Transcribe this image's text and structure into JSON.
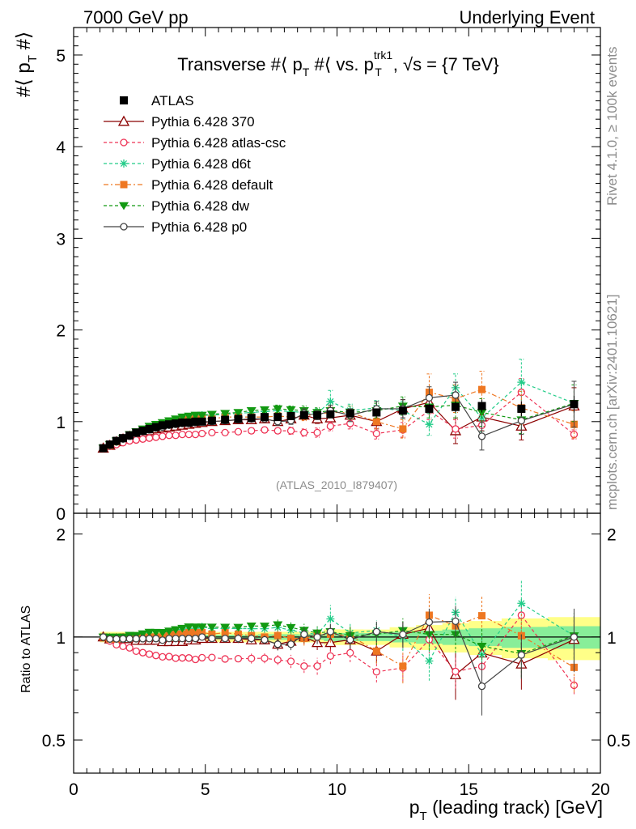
{
  "header": {
    "left": "7000 GeV pp",
    "right": "Underlying Event"
  },
  "side_texts": {
    "rivet": "Rivet 4.1.0, ≥ 100k events",
    "mcplots": "mcplots.cern.ch [arXiv:2401.10621]"
  },
  "chart_data": {
    "type": "line",
    "title_parts": {
      "a": "Transverse #⟨ p",
      "a_sub": "T",
      "b": " #⟨ vs. p",
      "b_sup": "trk1",
      "b_sub": "T",
      "c": ", √s = {7 TeV}"
    },
    "analysis_label": "(ATLAS_2010_I879407)",
    "ylabel_main": {
      "a": "#⟨ p",
      "sub": "T",
      "b": " #⟩"
    },
    "ylabel_ratio": "Ratio to ATLAS",
    "xlabel": {
      "a": "p",
      "sub": "T",
      "b": " (leading track) [GeV]"
    },
    "xlim": [
      0,
      20
    ],
    "ylim_main": [
      0,
      5.3
    ],
    "ylim_ratio": [
      0.4,
      2.3
    ],
    "x_ticks": [
      "0",
      "5",
      "10",
      "15",
      "20"
    ],
    "y_ticks_main": [
      "0",
      "1",
      "2",
      "3",
      "4",
      "5"
    ],
    "y_ticks_ratio": [
      "0.5",
      "1",
      "2"
    ],
    "x": [
      1.125,
      1.375,
      1.625,
      1.875,
      2.125,
      2.375,
      2.625,
      2.875,
      3.125,
      3.375,
      3.625,
      3.875,
      4.125,
      4.375,
      4.625,
      4.875,
      5.25,
      5.75,
      6.25,
      6.75,
      7.25,
      7.75,
      8.25,
      8.75,
      9.25,
      9.75,
      10.5,
      11.5,
      12.5,
      13.5,
      14.5,
      15.5,
      17.0,
      19.0
    ],
    "data": {
      "name": "ATLAS",
      "values": [
        0.71,
        0.75,
        0.79,
        0.82,
        0.85,
        0.88,
        0.9,
        0.92,
        0.94,
        0.96,
        0.97,
        0.98,
        0.99,
        0.99,
        1.0,
        1.0,
        1.01,
        1.02,
        1.03,
        1.04,
        1.05,
        1.05,
        1.06,
        1.07,
        1.07,
        1.08,
        1.09,
        1.1,
        1.12,
        1.14,
        1.16,
        1.17,
        1.14,
        1.19
      ],
      "errors": [
        0.01,
        0.01,
        0.01,
        0.01,
        0.01,
        0.01,
        0.01,
        0.01,
        0.01,
        0.01,
        0.01,
        0.01,
        0.01,
        0.01,
        0.01,
        0.01,
        0.01,
        0.01,
        0.01,
        0.01,
        0.02,
        0.02,
        0.02,
        0.02,
        0.02,
        0.03,
        0.03,
        0.03,
        0.04,
        0.05,
        0.06,
        0.07,
        0.08,
        0.09
      ]
    },
    "series": [
      {
        "name": "Pythia 6.428 370",
        "color": "#8b0000",
        "marker": "triangle-open",
        "dash": "",
        "values": [
          0.71,
          0.74,
          0.78,
          0.81,
          0.84,
          0.86,
          0.88,
          0.9,
          0.92,
          0.93,
          0.94,
          0.95,
          0.96,
          0.97,
          0.98,
          0.99,
          1.0,
          1.01,
          1.02,
          1.02,
          1.03,
          1.0,
          1.03,
          1.07,
          1.03,
          1.04,
          1.07,
          1.0,
          1.14,
          1.21,
          0.9,
          1.05,
          0.95,
          1.17
        ],
        "errors": [
          0.01,
          0.01,
          0.01,
          0.01,
          0.01,
          0.01,
          0.01,
          0.01,
          0.01,
          0.01,
          0.01,
          0.02,
          0.02,
          0.02,
          0.02,
          0.02,
          0.02,
          0.02,
          0.03,
          0.03,
          0.03,
          0.04,
          0.04,
          0.05,
          0.05,
          0.06,
          0.07,
          0.08,
          0.1,
          0.12,
          0.14,
          0.15,
          0.15,
          0.2
        ]
      },
      {
        "name": "Pythia 6.428 atlas-csc",
        "color": "#ee3355",
        "marker": "circle-open",
        "dash": "4,3",
        "values": [
          0.71,
          0.73,
          0.75,
          0.77,
          0.79,
          0.8,
          0.81,
          0.82,
          0.83,
          0.84,
          0.85,
          0.85,
          0.86,
          0.86,
          0.86,
          0.87,
          0.88,
          0.88,
          0.89,
          0.9,
          0.91,
          0.9,
          0.9,
          0.88,
          0.88,
          0.95,
          0.98,
          0.87,
          0.91,
          1.12,
          0.92,
          0.96,
          1.32,
          0.86
        ],
        "errors": [
          0.01,
          0.01,
          0.01,
          0.01,
          0.01,
          0.01,
          0.01,
          0.01,
          0.01,
          0.01,
          0.01,
          0.01,
          0.01,
          0.02,
          0.02,
          0.02,
          0.02,
          0.02,
          0.02,
          0.03,
          0.03,
          0.03,
          0.04,
          0.04,
          0.05,
          0.05,
          0.06,
          0.06,
          0.08,
          0.1,
          0.1,
          0.12,
          0.15,
          0.05
        ]
      },
      {
        "name": "Pythia 6.428 d6t",
        "color": "#22cc88",
        "marker": "asterisk",
        "dash": "4,3",
        "values": [
          0.71,
          0.74,
          0.78,
          0.81,
          0.85,
          0.88,
          0.9,
          0.93,
          0.96,
          0.98,
          1.0,
          1.02,
          1.04,
          1.05,
          1.06,
          1.07,
          1.07,
          1.08,
          1.09,
          1.1,
          1.11,
          1.12,
          1.11,
          1.1,
          1.09,
          1.22,
          1.12,
          1.15,
          1.12,
          0.97,
          1.37,
          1.04,
          1.43,
          1.2
        ],
        "errors": [
          0.01,
          0.01,
          0.01,
          0.01,
          0.01,
          0.01,
          0.01,
          0.01,
          0.01,
          0.01,
          0.01,
          0.02,
          0.02,
          0.02,
          0.02,
          0.02,
          0.02,
          0.02,
          0.03,
          0.03,
          0.03,
          0.04,
          0.04,
          0.05,
          0.05,
          0.12,
          0.07,
          0.08,
          0.1,
          0.12,
          0.15,
          0.15,
          0.25,
          0.2
        ]
      },
      {
        "name": "Pythia 6.428 default",
        "color": "#ee7722",
        "marker": "square",
        "dash": "6,3,2,3",
        "values": [
          0.71,
          0.74,
          0.78,
          0.82,
          0.85,
          0.88,
          0.9,
          0.92,
          0.94,
          0.96,
          0.98,
          1.0,
          1.01,
          1.02,
          1.03,
          1.03,
          1.03,
          1.05,
          1.05,
          1.05,
          1.05,
          1.06,
          1.05,
          1.06,
          1.08,
          1.1,
          1.1,
          1.0,
          0.92,
          1.32,
          1.25,
          1.35,
          1.15,
          0.97
        ],
        "errors": [
          0.01,
          0.01,
          0.01,
          0.01,
          0.01,
          0.01,
          0.01,
          0.01,
          0.01,
          0.01,
          0.01,
          0.02,
          0.02,
          0.02,
          0.02,
          0.02,
          0.02,
          0.02,
          0.03,
          0.03,
          0.03,
          0.04,
          0.04,
          0.05,
          0.05,
          0.06,
          0.07,
          0.08,
          0.1,
          0.2,
          0.15,
          0.2,
          0.18,
          0.15
        ]
      },
      {
        "name": "Pythia 6.428 dw",
        "color": "#119911",
        "marker": "triangle-down",
        "dash": "4,3",
        "values": [
          0.71,
          0.75,
          0.79,
          0.82,
          0.86,
          0.89,
          0.92,
          0.95,
          0.97,
          0.99,
          1.01,
          1.03,
          1.05,
          1.06,
          1.07,
          1.07,
          1.08,
          1.09,
          1.1,
          1.12,
          1.13,
          1.14,
          1.13,
          1.12,
          1.1,
          1.12,
          1.1,
          1.12,
          1.17,
          1.16,
          1.18,
          1.1,
          1.02,
          1.2
        ],
        "errors": [
          0.01,
          0.01,
          0.01,
          0.01,
          0.01,
          0.01,
          0.01,
          0.01,
          0.01,
          0.01,
          0.01,
          0.02,
          0.02,
          0.02,
          0.02,
          0.02,
          0.02,
          0.02,
          0.03,
          0.03,
          0.03,
          0.04,
          0.04,
          0.05,
          0.05,
          0.06,
          0.07,
          0.08,
          0.1,
          0.12,
          0.14,
          0.15,
          0.15,
          0.2
        ]
      },
      {
        "name": "Pythia 6.428 p0",
        "color": "#444444",
        "marker": "circle-open",
        "dash": "",
        "values": [
          0.71,
          0.74,
          0.78,
          0.81,
          0.84,
          0.87,
          0.89,
          0.91,
          0.93,
          0.94,
          0.96,
          0.97,
          0.98,
          0.98,
          0.99,
          1.0,
          1.0,
          1.01,
          1.02,
          1.03,
          1.03,
          1.0,
          1.01,
          1.09,
          1.07,
          1.12,
          1.07,
          1.14,
          1.14,
          1.26,
          1.29,
          0.84,
          1.01,
          1.19
        ],
        "errors": [
          0.01,
          0.01,
          0.01,
          0.01,
          0.01,
          0.01,
          0.01,
          0.01,
          0.01,
          0.01,
          0.01,
          0.02,
          0.02,
          0.02,
          0.02,
          0.02,
          0.02,
          0.02,
          0.03,
          0.03,
          0.03,
          0.04,
          0.04,
          0.05,
          0.05,
          0.06,
          0.07,
          0.08,
          0.1,
          0.12,
          0.14,
          0.15,
          0.15,
          0.25
        ]
      }
    ]
  }
}
